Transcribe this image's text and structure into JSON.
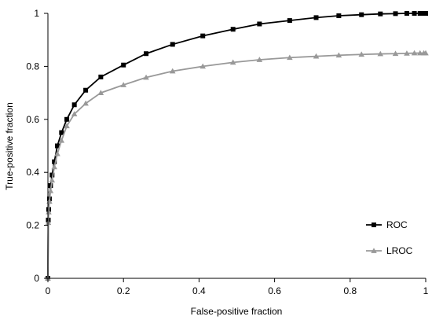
{
  "chart_data": {
    "type": "line",
    "xlabel": "False-positive fraction",
    "ylabel": "True-positive fraction",
    "xlim": [
      0,
      1
    ],
    "ylim": [
      0,
      1
    ],
    "x_ticks": [
      "0",
      "0.2",
      "0.4",
      "0.6",
      "0.8",
      "1"
    ],
    "y_ticks": [
      "0",
      "0.2",
      "0.4",
      "0.6",
      "0.8",
      "1"
    ],
    "grid": false,
    "legend_position": "bottom-right",
    "series": [
      {
        "name": "ROC",
        "color": "#000000",
        "marker": "square",
        "x": [
          0,
          0.001,
          0.002,
          0.004,
          0.007,
          0.011,
          0.017,
          0.025,
          0.036,
          0.05,
          0.07,
          0.1,
          0.14,
          0.2,
          0.26,
          0.33,
          0.41,
          0.49,
          0.56,
          0.64,
          0.71,
          0.77,
          0.83,
          0.88,
          0.92,
          0.95,
          0.97,
          0.985,
          0.995,
          1.0
        ],
        "y": [
          0,
          0.22,
          0.26,
          0.3,
          0.35,
          0.39,
          0.44,
          0.5,
          0.55,
          0.6,
          0.655,
          0.71,
          0.76,
          0.805,
          0.848,
          0.883,
          0.915,
          0.94,
          0.96,
          0.973,
          0.984,
          0.991,
          0.995,
          0.998,
          0.999,
          1.0,
          1.0,
          1.0,
          1.0,
          1.0
        ]
      },
      {
        "name": "LROC",
        "color": "#999999",
        "marker": "triangle",
        "x": [
          0,
          0.001,
          0.002,
          0.004,
          0.007,
          0.011,
          0.017,
          0.025,
          0.036,
          0.05,
          0.07,
          0.1,
          0.14,
          0.2,
          0.26,
          0.33,
          0.41,
          0.49,
          0.56,
          0.64,
          0.71,
          0.77,
          0.83,
          0.88,
          0.92,
          0.95,
          0.97,
          0.985,
          0.995,
          1.0
        ],
        "y": [
          0,
          0.21,
          0.25,
          0.29,
          0.33,
          0.37,
          0.42,
          0.47,
          0.52,
          0.575,
          0.62,
          0.66,
          0.7,
          0.73,
          0.758,
          0.782,
          0.8,
          0.815,
          0.825,
          0.833,
          0.838,
          0.842,
          0.845,
          0.847,
          0.848,
          0.849,
          0.85,
          0.85,
          0.85,
          0.85
        ]
      }
    ]
  }
}
